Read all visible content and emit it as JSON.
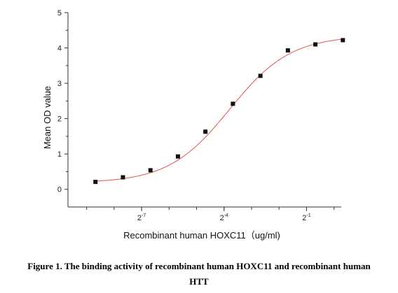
{
  "chart_data": {
    "type": "scatter",
    "title": "",
    "xlabel": "Recombinant human HOXC11（ug/ml)",
    "ylabel": "Mean OD value",
    "x_scale": "log2",
    "x_ticks": [
      {
        "base": "2",
        "exp": "-7",
        "value": 0.0078125
      },
      {
        "base": "2",
        "exp": "-4",
        "value": 0.0625
      },
      {
        "base": "2",
        "exp": "-1",
        "value": 0.5
      }
    ],
    "y_ticks": [
      "0",
      "1",
      "2",
      "3",
      "4",
      "5"
    ],
    "ylim": [
      -0.5,
      5
    ],
    "xlim": [
      0.00122,
      1.2
    ],
    "grid": false,
    "series": [
      {
        "marker": "square",
        "marker_color": "#111111",
        "points": [
          {
            "x": 0.00244,
            "y": 0.21
          },
          {
            "x": 0.00488,
            "y": 0.34
          },
          {
            "x": 0.00977,
            "y": 0.54
          },
          {
            "x": 0.01953,
            "y": 0.93
          },
          {
            "x": 0.03906,
            "y": 1.63
          },
          {
            "x": 0.07813,
            "y": 2.42
          },
          {
            "x": 0.15625,
            "y": 3.21
          },
          {
            "x": 0.3125,
            "y": 3.93
          },
          {
            "x": 0.625,
            "y": 4.1
          },
          {
            "x": 1.25,
            "y": 4.22
          }
        ]
      }
    ],
    "fit_curve": {
      "color": "#e8534f",
      "type": "4PL sigmoid"
    }
  },
  "caption": {
    "line1": "Figure 1. The binding activity of recombinant human HOXC11 and recombinant human",
    "line2": "HTT"
  }
}
